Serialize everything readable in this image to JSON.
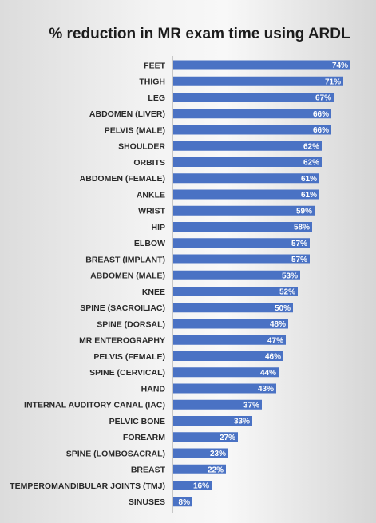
{
  "chart_data": {
    "type": "bar",
    "orientation": "horizontal",
    "title": "% reduction in MR exam time using ARDL",
    "xlabel": "",
    "ylabel": "",
    "xlim": [
      0,
      80
    ],
    "grid": false,
    "legend": "none",
    "bar_color": "#4a72c4",
    "categories": [
      "FEET",
      "THIGH",
      "LEG",
      "ABDOMEN (LIVER)",
      "PELVIS (MALE)",
      "SHOULDER",
      "ORBITS",
      "ABDOMEN (FEMALE)",
      "ANKLE",
      "WRIST",
      "HIP",
      "ELBOW",
      "BREAST (IMPLANT)",
      "ABDOMEN (MALE)",
      "KNEE",
      "SPINE (SACROILIAC)",
      "SPINE (DORSAL)",
      "MR ENTEROGRAPHY",
      "PELVIS  (FEMALE)",
      "SPINE (CERVICAL)",
      "HAND",
      "INTERNAL AUDITORY CANAL (IAC)",
      "PELVIC BONE",
      "FOREARM",
      "SPINE (LOMBOSACRAL)",
      "BREAST",
      "TEMPEROMANDIBULAR JOINTS (TMJ)",
      "SINUSES"
    ],
    "values": [
      74,
      71,
      67,
      66,
      66,
      62,
      62,
      61,
      61,
      59,
      58,
      57,
      57,
      53,
      52,
      50,
      48,
      47,
      46,
      44,
      43,
      37,
      33,
      27,
      23,
      22,
      16,
      8
    ],
    "value_labels": [
      "74%",
      "71%",
      "67%",
      "66%",
      "66%",
      "62%",
      "62%",
      "61%",
      "61%",
      "59%",
      "58%",
      "57%",
      "57%",
      "53%",
      "52%",
      "50%",
      "48%",
      "47%",
      "46%",
      "44%",
      "43%",
      "37%",
      "33%",
      "27%",
      "23%",
      "22%",
      "16%",
      "8%"
    ]
  }
}
